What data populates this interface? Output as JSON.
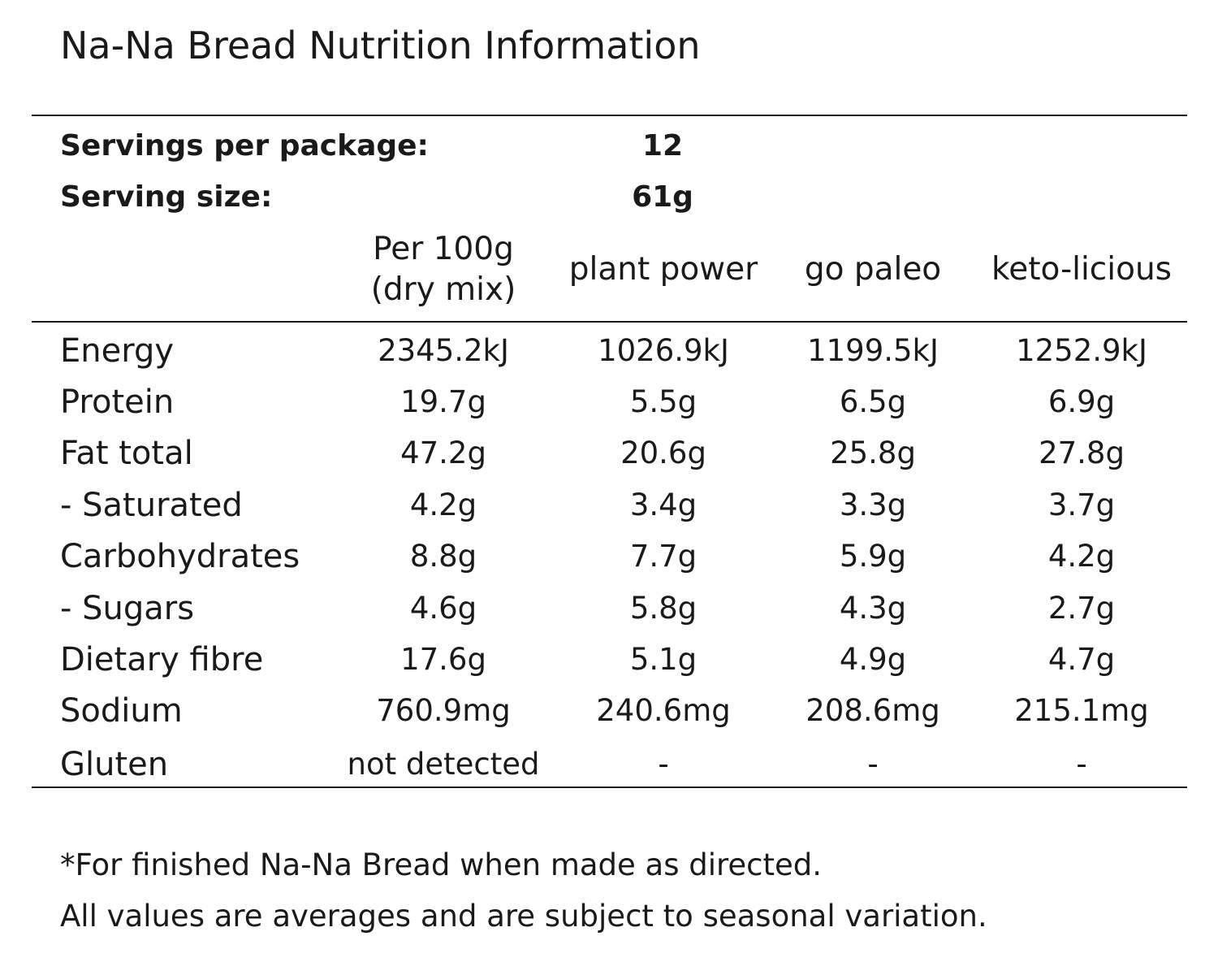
{
  "title": "Na-Na Bread Nutrition Information",
  "servings": {
    "per_package_label": "Servings per package:",
    "per_package_value": "12",
    "size_label": "Serving size:",
    "size_value": "61g"
  },
  "columns": {
    "c1_line1": "Per 100g",
    "c1_line2": "(dry mix)",
    "c2": "plant power",
    "c3": "go paleo",
    "c4": "keto-licious"
  },
  "rows": [
    {
      "label": "Energy",
      "values": [
        "2345.2kJ",
        "1026.9kJ",
        "1199.5kJ",
        "1252.9kJ"
      ]
    },
    {
      "label": "Protein",
      "values": [
        "19.7g",
        "5.5g",
        "6.5g",
        "6.9g"
      ]
    },
    {
      "label": "Fat total",
      "values": [
        "47.2g",
        "20.6g",
        "25.8g",
        "27.8g"
      ]
    },
    {
      "label": "- Saturated",
      "values": [
        "4.2g",
        "3.4g",
        "3.3g",
        "3.7g"
      ]
    },
    {
      "label": "Carbohydrates",
      "values": [
        "8.8g",
        "7.7g",
        "5.9g",
        "4.2g"
      ]
    },
    {
      "label": "- Sugars",
      "values": [
        "4.6g",
        "5.8g",
        "4.3g",
        "2.7g"
      ]
    },
    {
      "label": "Dietary fibre",
      "values": [
        "17.6g",
        "5.1g",
        "4.9g",
        "4.7g"
      ]
    },
    {
      "label": "Sodium",
      "values": [
        "760.9mg",
        "240.6mg",
        "208.6mg",
        "215.1mg"
      ]
    },
    {
      "label": "Gluten",
      "values": [
        "not detected",
        "-",
        "-",
        "-"
      ]
    }
  ],
  "footnotes": {
    "line1": "*For finished Na-Na Bread when made as directed.",
    "line2": "All values are averages and are subject to seasonal variation."
  }
}
